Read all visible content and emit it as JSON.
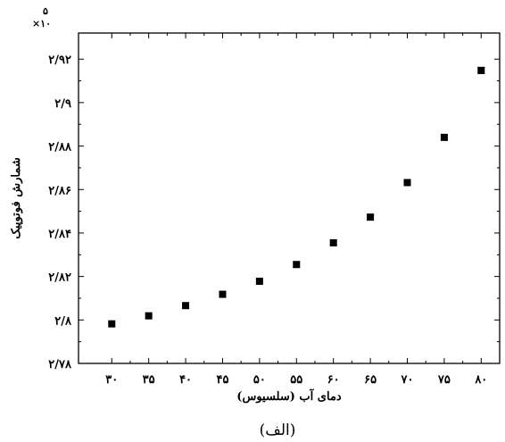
{
  "chart_data": {
    "type": "scatter",
    "xlabel": "دمای آب (سلسیوس)",
    "ylabel": "شمارش فوتوپیک",
    "caption": "(الف)",
    "y_scale_prefix": "×۱۰",
    "y_scale_exponent": "۵",
    "x_ticks": [
      {
        "value": 30,
        "label": "۳۰"
      },
      {
        "value": 35,
        "label": "۳۵"
      },
      {
        "value": 40,
        "label": "۴۰"
      },
      {
        "value": 45,
        "label": "۴۵"
      },
      {
        "value": 50,
        "label": "۵۰"
      },
      {
        "value": 55,
        "label": "۵۵"
      },
      {
        "value": 60,
        "label": "۶۰"
      },
      {
        "value": 65,
        "label": "۶۵"
      },
      {
        "value": 70,
        "label": "۷۰"
      },
      {
        "value": 75,
        "label": "۷۵"
      },
      {
        "value": 80,
        "label": "۸۰"
      }
    ],
    "y_ticks": [
      {
        "value": 2.78,
        "label": "۲/۷۸"
      },
      {
        "value": 2.8,
        "label": "۲/۸"
      },
      {
        "value": 2.82,
        "label": "۲/۸۲"
      },
      {
        "value": 2.84,
        "label": "۲/۸۴"
      },
      {
        "value": 2.86,
        "label": "۲/۸۶"
      },
      {
        "value": 2.88,
        "label": "۲/۸۸"
      },
      {
        "value": 2.9,
        "label": "۲/۹"
      },
      {
        "value": 2.92,
        "label": "۲/۹۲"
      }
    ],
    "xlim": [
      25.5,
      82.5
    ],
    "ylim": [
      2.78,
      2.932
    ],
    "series": [
      {
        "x": [
          30,
          35,
          40,
          45,
          50,
          55,
          60,
          65,
          70,
          75,
          80
        ],
        "y": [
          2.7982,
          2.8019,
          2.8066,
          2.8118,
          2.8178,
          2.8255,
          2.8355,
          2.8473,
          2.8632,
          2.884,
          2.9148
        ],
        "err": [
          0,
          0,
          0,
          0,
          0,
          0.0012,
          0.0012,
          0.0012,
          0.0013,
          0.0013,
          0.0014
        ]
      }
    ],
    "grid": false
  }
}
